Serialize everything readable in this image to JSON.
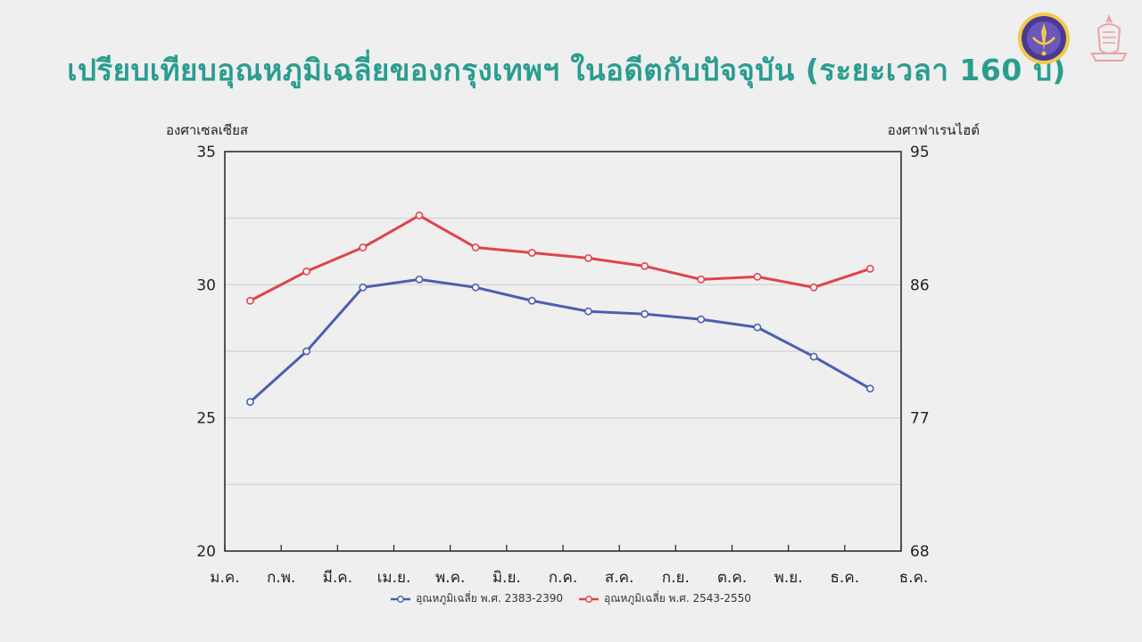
{
  "title": "เปรียบเทียบอุณหภูมิเฉลี่ยของกรุงเทพฯ ในอดีตกับปัจจุบัน (ระยะเวลา 160 ปี)",
  "logos": {
    "left": "university-seal-icon",
    "right": "chulalongkorn-crest-icon"
  },
  "colors": {
    "series1": "#4c5fad",
    "series2": "#e0434a",
    "title": "#2a9d8f",
    "grid": "#d0d0d0",
    "axis": "#222222"
  },
  "chart_data": {
    "type": "line",
    "ylabel": "องศาเซลเซียส",
    "y2label": "องศาฟาเรนไฮต์",
    "ylim": [
      20,
      35
    ],
    "y_ticks": [
      20,
      25,
      30,
      35
    ],
    "y2lim": [
      68,
      95
    ],
    "y2_ticks": [
      {
        "label": "68",
        "at": 20
      },
      {
        "label": "77",
        "at": 25
      },
      {
        "label": "86",
        "at": 30
      },
      {
        "label": "95",
        "at": 35
      }
    ],
    "grid_lines": [
      22.5,
      27.5,
      32.5
    ],
    "categories": [
      "ม.ค.",
      "ก.พ.",
      "มี.ค.",
      "เม.ย.",
      "พ.ค.",
      "มิ.ย.",
      "ก.ค.",
      "ส.ค.",
      "ก.ย.",
      "ต.ค.",
      "พ.ย.",
      "ธ.ค."
    ],
    "series": [
      {
        "name": "อุณหภูมิเฉลี่ย พ.ศ. 2383-2390",
        "color": "#4c5fad",
        "values": [
          25.6,
          27.5,
          29.9,
          30.2,
          29.9,
          29.4,
          29.0,
          28.9,
          28.7,
          28.4,
          27.3,
          26.1
        ]
      },
      {
        "name": "อุณหภูมิเฉลี่ย พ.ศ. 2543-2550",
        "color": "#e0434a",
        "values": [
          29.4,
          30.5,
          31.4,
          32.6,
          31.4,
          31.2,
          31.0,
          30.7,
          30.2,
          30.3,
          29.9,
          30.6
        ]
      }
    ],
    "legend_position": "bottom",
    "grid": true
  }
}
